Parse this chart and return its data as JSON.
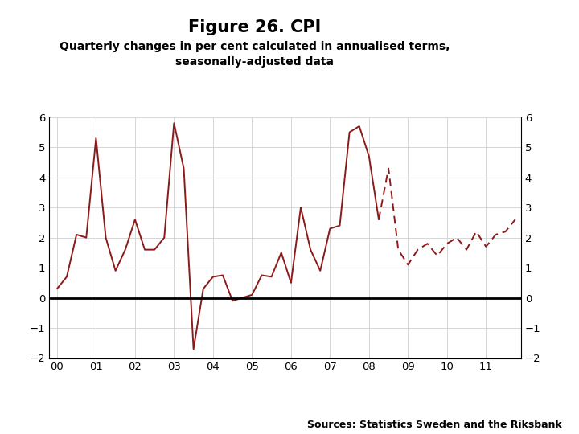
{
  "title": "Figure 26. CPI",
  "subtitle": "Quarterly changes in per cent calculated in annualised terms,\nseasonally-adjusted data",
  "source": "Sources: Statistics Sweden and the Riksbank",
  "line_color": "#8B1A1A",
  "background_color": "#ffffff",
  "ylim": [
    -2,
    6
  ],
  "yticks": [
    -2,
    -1,
    0,
    1,
    2,
    3,
    4,
    5,
    6
  ],
  "xtick_labels": [
    "00",
    "01",
    "02",
    "03",
    "04",
    "05",
    "06",
    "07",
    "08",
    "09",
    "10",
    "11"
  ],
  "footer_color": "#1e3f7a",
  "solid_data": {
    "x": [
      2000.0,
      2000.25,
      2000.5,
      2000.75,
      2001.0,
      2001.25,
      2001.5,
      2001.75,
      2002.0,
      2002.25,
      2002.5,
      2002.75,
      2003.0,
      2003.25,
      2003.5,
      2003.75,
      2004.0,
      2004.25,
      2004.5,
      2004.75,
      2005.0,
      2005.25,
      2005.5,
      2005.75,
      2006.0,
      2006.25,
      2006.5,
      2006.75,
      2007.0,
      2007.25,
      2007.5,
      2007.75,
      2008.0,
      2008.25
    ],
    "y": [
      0.3,
      0.7,
      2.1,
      2.0,
      5.3,
      2.0,
      0.9,
      1.6,
      2.6,
      1.6,
      1.6,
      2.0,
      5.8,
      4.3,
      -1.7,
      0.3,
      0.7,
      0.75,
      -0.1,
      0.0,
      0.1,
      0.75,
      0.7,
      1.5,
      0.5,
      3.0,
      1.6,
      0.9,
      2.3,
      2.4,
      5.5,
      5.7,
      4.7,
      2.6
    ]
  },
  "dashed_data": {
    "x": [
      2008.25,
      2008.5,
      2008.75,
      2009.0,
      2009.25,
      2009.5,
      2009.75,
      2010.0,
      2010.25,
      2010.5,
      2010.75,
      2011.0,
      2011.25,
      2011.5,
      2011.75
    ],
    "y": [
      2.6,
      4.3,
      1.6,
      1.1,
      1.6,
      1.8,
      1.4,
      1.8,
      2.0,
      1.6,
      2.2,
      1.7,
      2.1,
      2.2,
      2.6
    ]
  }
}
